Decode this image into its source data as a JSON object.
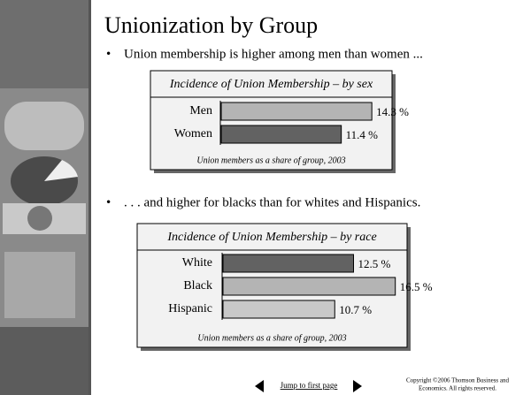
{
  "title": "Unionization by Group",
  "bullets": [
    "Union membership is higher among men than women ...",
    ". . . and higher for blacks than for whites and Hispanics."
  ],
  "chart_data": [
    {
      "type": "bar",
      "title": "Incidence of Union Membership – by sex",
      "categories": [
        "Men",
        "Women"
      ],
      "values": [
        14.3,
        11.4
      ],
      "value_labels": [
        "14.3 %",
        "11.4 %"
      ],
      "colors": [
        "#b4b4b4",
        "#626262"
      ],
      "note": "Union members as a share of group, 2003"
    },
    {
      "type": "bar",
      "title": "Incidence of Union Membership – by race",
      "categories": [
        "White",
        "Black",
        "Hispanic"
      ],
      "values": [
        12.5,
        16.5,
        10.7
      ],
      "value_labels": [
        "12.5 %",
        "16.5 %",
        "10.7 %"
      ],
      "colors": [
        "#626262",
        "#b4b4b4",
        "#c8c8c8"
      ],
      "note": "Union members as a share of group, 2003"
    }
  ],
  "nav": {
    "link": "Jump to first page"
  },
  "copyright": [
    "Copyright ©2006  Thomson Business and",
    "Economics. All rights reserved."
  ]
}
